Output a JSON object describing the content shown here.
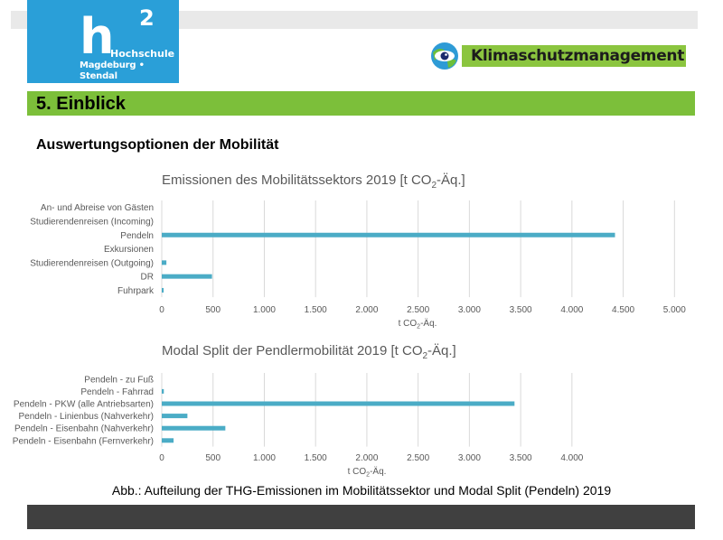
{
  "header": {
    "logo": {
      "main": "h",
      "sup": "2",
      "name": "Hochschule",
      "sub": "Magdeburg • Stendal"
    },
    "klima_logo": "Klimaschutzmanagement"
  },
  "section_title": "5. Einblick",
  "subtitle": "Auswertungsoptionen der Mobilität",
  "caption": "Abb.: Aufteilung der THG-Emissionen im Mobilitätssektor und Modal Split (Pendeln) 2019",
  "colors": {
    "bar": "#4bacc6",
    "section_bar": "#7cbf3a",
    "logo_blue": "#2a9fd8",
    "footer": "#404040"
  },
  "chart_data": [
    {
      "type": "bar",
      "orientation": "horizontal",
      "title": "Emissionen des Mobilitätssektors 2019 [t CO2-Äq.]",
      "xlabel": "t CO2-Äq.",
      "categories": [
        "An- und Abreise von Gästen",
        "Studierendenreisen (Incoming)",
        "Pendeln",
        "Exkursionen",
        "Studierendenreisen (Outgoing)",
        "DR",
        "Fuhrpark"
      ],
      "values": [
        0,
        0,
        4420,
        0,
        45,
        490,
        18
      ],
      "xlim": [
        0,
        5000
      ],
      "ticks": [
        0,
        500,
        1000,
        1500,
        2000,
        2500,
        3000,
        3500,
        4000,
        4500,
        5000
      ],
      "tick_labels": [
        "0",
        "500",
        "1.000",
        "1.500",
        "2.000",
        "2.500",
        "3.000",
        "3.500",
        "4.000",
        "4.500",
        "5.000"
      ],
      "grid": true
    },
    {
      "type": "bar",
      "orientation": "horizontal",
      "title": "Modal Split der Pendlermobilität 2019 [t CO2-Äq.]",
      "xlabel": "t CO2-Äq.",
      "categories": [
        "Pendeln - zu Fuß",
        "Pendeln - Fahrrad",
        "Pendeln - PKW (alle Antriebsarten)",
        "Pendeln - Linienbus (Nahverkehr)",
        "Pendeln - Eisenbahn (Nahverkehr)",
        "Pendeln - Eisenbahn (Fernverkehr)"
      ],
      "values": [
        0,
        20,
        3440,
        250,
        620,
        115
      ],
      "xlim": [
        0,
        4000
      ],
      "ticks": [
        0,
        500,
        1000,
        1500,
        2000,
        2500,
        3000,
        3500,
        4000
      ],
      "tick_labels": [
        "0",
        "500",
        "1.000",
        "1.500",
        "2.000",
        "2.500",
        "3.000",
        "3.500",
        "4.000"
      ],
      "grid": true
    }
  ]
}
